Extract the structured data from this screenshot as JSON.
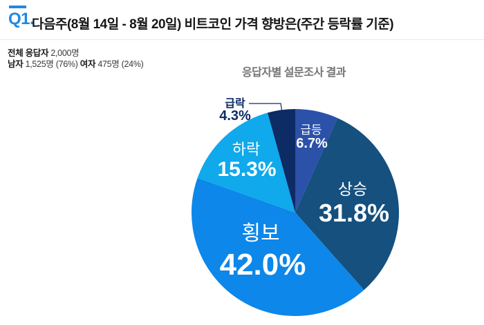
{
  "header": {
    "q_label": "Q1.",
    "title": "다음주(8월 14일 - 8월 20일)  비트코인 가격 향방은(주간 등락률 기준)",
    "accent_color": "#1e88e5"
  },
  "respondents": {
    "total_label": "전체 응답자",
    "total_value": " 2,000명",
    "male_label": "남자",
    "male_value": " 1,525명 (76%) ",
    "female_label": "여자",
    "female_value": " 475명 (24%)"
  },
  "chart_data": {
    "type": "pie",
    "title": "응답자별 설문조사 결과",
    "unit": "percent",
    "direction": "clockwise",
    "start_angle": "12 o'clock",
    "legend": "none",
    "slices": [
      {
        "label": "급등",
        "value": 6.7,
        "pct_label": "6.7%",
        "color": "#2b51a9",
        "label_placement": "inside"
      },
      {
        "label": "상승",
        "value": 31.8,
        "pct_label": "31.8%",
        "color": "#15507e",
        "label_placement": "inside"
      },
      {
        "label": "횡보",
        "value": 42.0,
        "pct_label": "42.0%",
        "color": "#0d87e9",
        "label_placement": "inside"
      },
      {
        "label": "하락",
        "value": 15.3,
        "pct_label": "15.3%",
        "color": "#0fa9ec",
        "label_placement": "inside"
      },
      {
        "label": "급락",
        "value": 4.3,
        "pct_label": "4.3%",
        "color": "#0d2b64",
        "label_placement": "outside-callout"
      }
    ]
  }
}
